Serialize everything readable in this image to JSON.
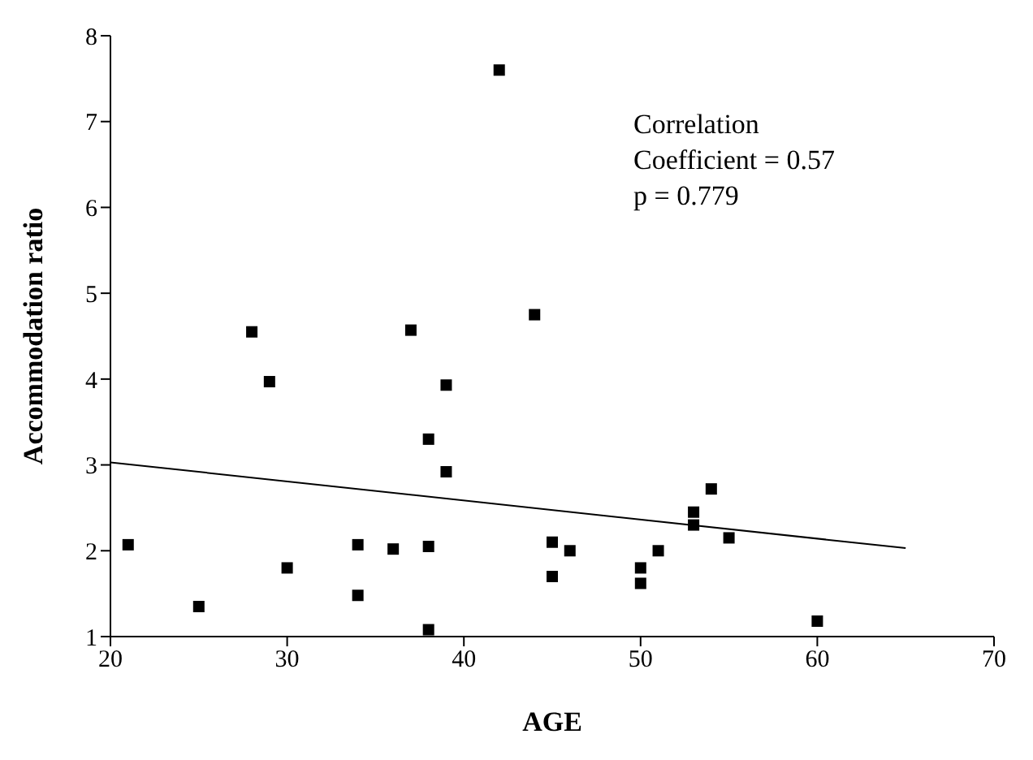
{
  "chart_data": {
    "type": "scatter",
    "xlabel": "AGE",
    "ylabel": "Accommodation ratio",
    "annotations": [
      "Correlation\nCoefficient = 0.57\np = 0.779"
    ],
    "xlim": [
      20,
      70
    ],
    "xticks": [
      20,
      30,
      40,
      50,
      60,
      70
    ],
    "ylim": [
      1,
      8
    ],
    "yticks": [
      1,
      2,
      3,
      4,
      5,
      6,
      7,
      8
    ],
    "grid": false,
    "legend": false,
    "marker": "square",
    "series": [
      {
        "color": "#000000",
        "x": [
          21,
          25,
          28,
          29,
          30,
          34,
          34,
          36,
          37,
          38,
          38,
          38,
          39,
          39,
          42,
          44,
          45,
          45,
          46,
          50,
          50,
          51,
          53,
          53,
          54,
          55,
          60
        ],
        "values": [
          2.07,
          1.35,
          4.55,
          3.97,
          1.8,
          2.07,
          1.48,
          2.02,
          4.57,
          3.3,
          2.05,
          1.08,
          3.93,
          2.92,
          7.6,
          4.75,
          2.1,
          1.7,
          2.0,
          1.8,
          1.62,
          2.0,
          2.45,
          2.3,
          2.72,
          2.15,
          1.18
        ]
      },
      {
        "type": "line",
        "marker": "none",
        "color": "#000000",
        "x": [
          20,
          65
        ],
        "values": [
          3.03,
          2.03
        ]
      }
    ]
  }
}
